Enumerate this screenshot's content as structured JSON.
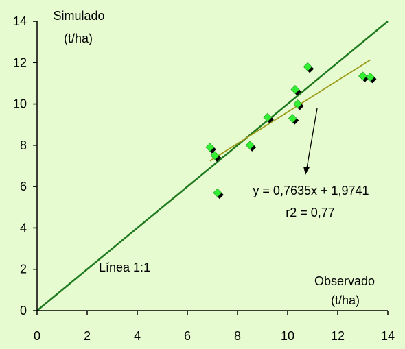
{
  "chart_data": {
    "type": "scatter",
    "title": "",
    "ylabel_line1": "Simulado",
    "ylabel_line2": "(t/ha)",
    "xlabel_line1": "Observado",
    "xlabel_line2": "(t/ha)",
    "xlim": [
      0,
      14
    ],
    "ylim": [
      0,
      14
    ],
    "xticks": [
      "0",
      "2",
      "4",
      "6",
      "8",
      "10",
      "12",
      "14"
    ],
    "yticks": [
      "0",
      "2",
      "4",
      "6",
      "8",
      "10",
      "12",
      "14"
    ],
    "grid": false,
    "points": [
      {
        "x": 6.9,
        "y": 7.9
      },
      {
        "x": 7.1,
        "y": 7.5
      },
      {
        "x": 7.2,
        "y": 5.7
      },
      {
        "x": 8.5,
        "y": 8.0
      },
      {
        "x": 9.2,
        "y": 9.35
      },
      {
        "x": 10.2,
        "y": 9.3
      },
      {
        "x": 10.3,
        "y": 10.7
      },
      {
        "x": 10.4,
        "y": 10.0
      },
      {
        "x": 10.8,
        "y": 11.8
      },
      {
        "x": 13.0,
        "y": 11.35
      },
      {
        "x": 13.3,
        "y": 11.3
      }
    ],
    "identity_line": {
      "label": "Línea 1:1",
      "from": [
        0,
        0
      ],
      "to": [
        14,
        14
      ]
    },
    "regression": {
      "equation": "y = 0,7635x + 1,9741",
      "r2": "r2 = 0,77",
      "slope": 0.7635,
      "intercept": 1.9741,
      "x_range": [
        6.9,
        13.3
      ]
    },
    "colors": {
      "background": "#e6fbd0",
      "axis": "#000000",
      "identity_line": "#1f7a1f",
      "regression_line": "#9c9a1a",
      "marker_fill": "#33ee33",
      "marker_shadow": "#000000"
    }
  }
}
